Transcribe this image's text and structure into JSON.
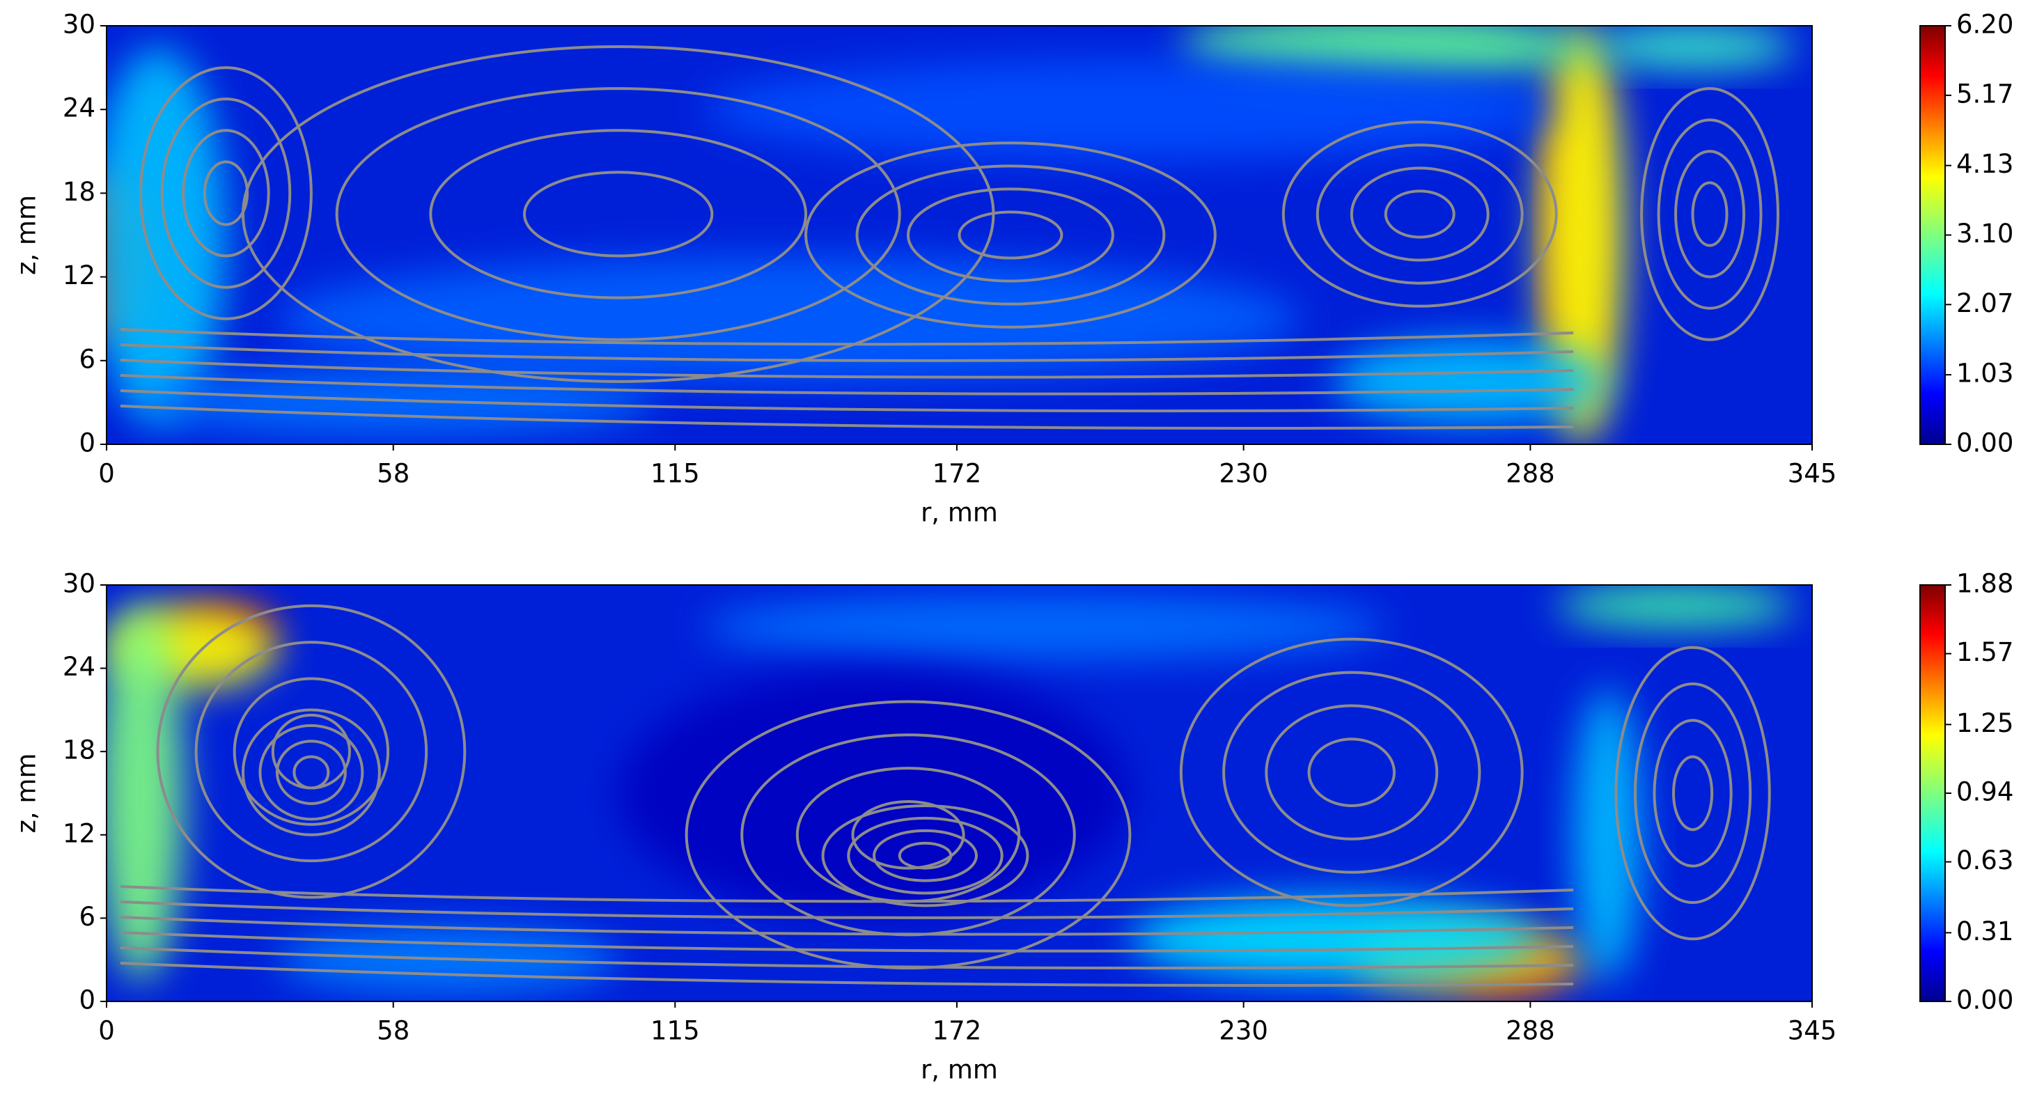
{
  "chart_data": [
    {
      "type": "contour",
      "xlabel": "r, mm",
      "ylabel": "z, mm",
      "xlim": [
        0,
        345
      ],
      "xticks": [
        0,
        58,
        115,
        172,
        230,
        288,
        345
      ],
      "ylim": [
        0,
        30
      ],
      "yticks": [
        0,
        6,
        12,
        18,
        24,
        30
      ],
      "colorbar_lim": [
        0,
        6.2
      ],
      "colorbar_ticks": [
        {
          "value": 0,
          "label": "0.00"
        },
        {
          "value": 1.03,
          "label": "1.03"
        },
        {
          "value": 2.07,
          "label": "2.07"
        },
        {
          "value": 3.1,
          "label": "3.10"
        },
        {
          "value": 4.13,
          "label": "4.13"
        },
        {
          "value": 5.17,
          "label": "5.17"
        },
        {
          "value": 6.2,
          "label": "6.20"
        }
      ],
      "colormap": "jet",
      "streamline_color": "#8c8c8c"
    },
    {
      "type": "contour",
      "xlabel": "r, mm",
      "ylabel": "z, mm",
      "xlim": [
        0,
        345
      ],
      "xticks": [
        0,
        58,
        115,
        172,
        230,
        288,
        345
      ],
      "ylim": [
        0,
        30
      ],
      "yticks": [
        0,
        6,
        12,
        18,
        24,
        30
      ],
      "colorbar_lim": [
        0,
        1.88
      ],
      "colorbar_ticks": [
        {
          "value": 0,
          "label": "0.00"
        },
        {
          "value": 0.31,
          "label": "0.31"
        },
        {
          "value": 0.63,
          "label": "0.63"
        },
        {
          "value": 0.94,
          "label": "0.94"
        },
        {
          "value": 1.25,
          "label": "1.25"
        },
        {
          "value": 1.57,
          "label": "1.57"
        },
        {
          "value": 1.88,
          "label": "1.88"
        }
      ],
      "colormap": "jet",
      "streamline_color": "#8c8c8c"
    }
  ]
}
